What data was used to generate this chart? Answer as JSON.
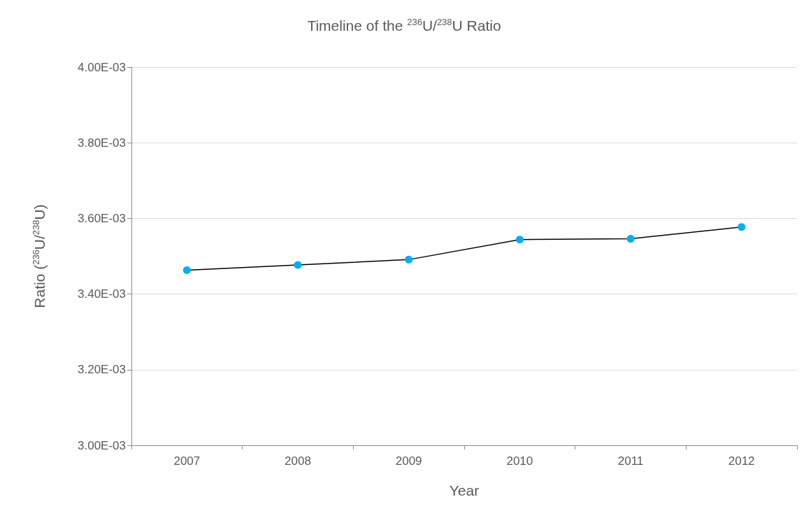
{
  "chart_data": {
    "type": "line",
    "title": "Timeline of the $^{236}$U/$^{238}$U Ratio",
    "xlabel": "Year",
    "ylabel": "Ratio ($^{236}$U/$^{238}$U)",
    "categories": [
      "2007",
      "2008",
      "2009",
      "2010",
      "2011",
      "2012"
    ],
    "series": [
      {
        "color": "#00b0f0",
        "values": [
          0.003463,
          0.003477,
          0.003491,
          0.003544,
          0.003546,
          0.003577
        ]
      }
    ],
    "ylim": [
      0.003,
      0.004
    ],
    "yticks": [
      {
        "value": 0.003,
        "label": "3.00E-03"
      },
      {
        "value": 0.0032,
        "label": "3.20E-03"
      },
      {
        "value": 0.0034,
        "label": "3.40E-03"
      },
      {
        "value": 0.0036,
        "label": "3.60E-03"
      },
      {
        "value": 0.0038,
        "label": "3.80E-03"
      },
      {
        "value": 0.004,
        "label": "4.00E-03"
      }
    ],
    "grid": "y",
    "marker": "circle",
    "line_style": "solid"
  }
}
